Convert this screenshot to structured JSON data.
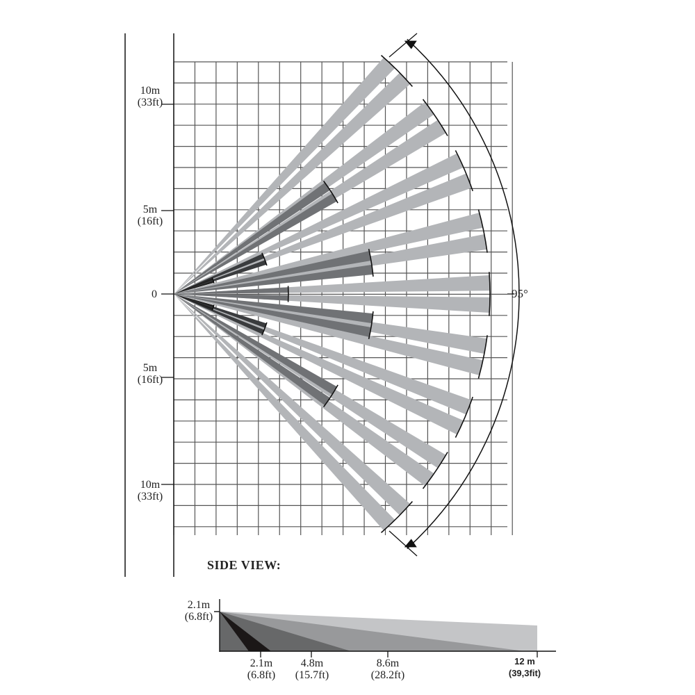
{
  "top_view": {
    "y_labels": [
      {
        "value": "10m",
        "sub": "(33ft)"
      },
      {
        "value": "5m",
        "sub": "(16ft)"
      },
      {
        "value": "0",
        "sub": ""
      },
      {
        "value": "5m",
        "sub": "(16ft)"
      },
      {
        "value": "10m",
        "sub": "(33ft)"
      }
    ],
    "angle_label": "95°",
    "colors": {
      "long_zone": "#b3b5b8",
      "mid_zone": "#707275",
      "short_zone": "#3a3c3e",
      "grid": "#555555"
    }
  },
  "side_view": {
    "title": "SIDE VIEW:",
    "height_label": {
      "value": "2.1m",
      "sub": "(6.8ft)"
    },
    "distance_labels": [
      {
        "value": "2.1m",
        "sub": "(6.8ft)"
      },
      {
        "value": "4.8m",
        "sub": "(15.7ft)"
      },
      {
        "value": "8.6m",
        "sub": "(28.2ft)"
      },
      {
        "value": "12 m",
        "sub": "(39,3fit)"
      }
    ]
  }
}
